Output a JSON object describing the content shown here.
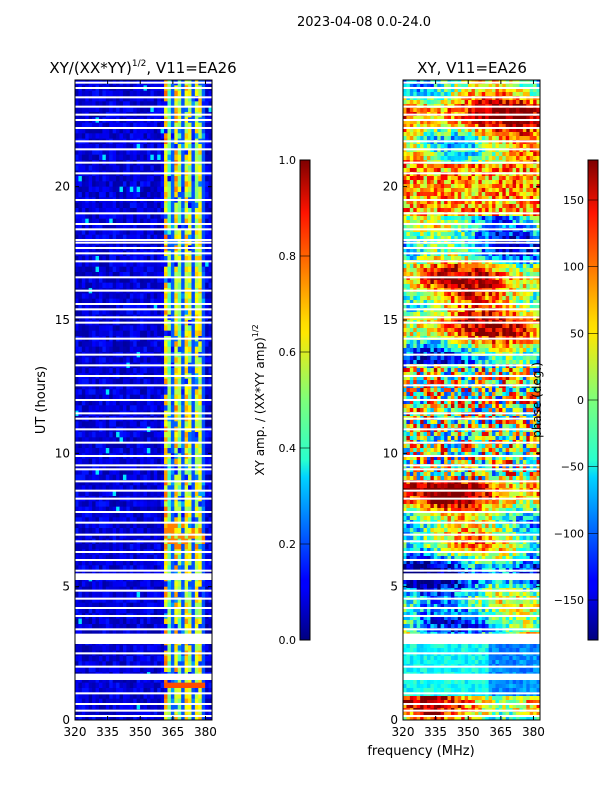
{
  "figure_title": "2023-04-08 0.0-24.0",
  "shared_xlabel": "frequency (MHz)",
  "chart_data": [
    {
      "type": "heatmap",
      "title": "XY/(XX*YY)^1/2, V11=EA26",
      "title_main": "XY/(XX*YY)",
      "title_exp": "1/2",
      "title_tail": ", V11=EA26",
      "xlabel": "frequency (MHz)",
      "ylabel": "UT (hours)",
      "xlim": [
        320,
        383
      ],
      "ylim": [
        0,
        24
      ],
      "xticks": [
        320,
        335,
        350,
        365,
        380
      ],
      "yticks": [
        0,
        5,
        10,
        15,
        20
      ],
      "colorbar": {
        "label_main": "XY amp. / (XX*YY amp)",
        "label_exp": "1/2",
        "range": [
          0.0,
          1.0
        ],
        "ticks": [
          "0.0",
          "0.2",
          "0.4",
          "0.6",
          "0.8",
          "1.0"
        ],
        "tick_values": [
          0.0,
          0.2,
          0.4,
          0.6,
          0.8,
          1.0
        ]
      },
      "description_values": {
        "background_level": 0.05,
        "active_band_mhz": [
          361,
          380
        ],
        "active_level_range": [
          0.2,
          0.85
        ]
      }
    },
    {
      "type": "heatmap",
      "title": "XY, V11=EA26",
      "xlabel": "frequency (MHz)",
      "ylabel": "",
      "xlim": [
        320,
        383
      ],
      "ylim": [
        0,
        24
      ],
      "xticks": [
        320,
        335,
        350,
        365,
        380
      ],
      "yticks": [
        0,
        5,
        10,
        15,
        20
      ],
      "colorbar": {
        "label_main": "phase (deg.)",
        "label_exp": "",
        "range": [
          -180,
          180
        ],
        "ticks": [
          "−150",
          "−100",
          "−50",
          "0",
          "50",
          "100",
          "150"
        ],
        "tick_values": [
          -150,
          -100,
          -50,
          0,
          50,
          100,
          150
        ]
      }
    }
  ],
  "flagged_hours": [
    0.15,
    0.35,
    0.6,
    1.0,
    1.55,
    1.7,
    2.0,
    2.5,
    2.9,
    3.05,
    3.2,
    3.4,
    3.9,
    4.2,
    4.55,
    4.85,
    5.3,
    5.45,
    5.6,
    6.0,
    6.3,
    6.7,
    6.95,
    7.4,
    7.8,
    8.3,
    8.6,
    8.95,
    9.4,
    9.55,
    9.9,
    10.4,
    10.9,
    11.3,
    11.5,
    12.0,
    12.55,
    12.9,
    13.3,
    13.7,
    14.3,
    14.9,
    15.1,
    15.4,
    15.6,
    16.1,
    16.6,
    17.2,
    17.5,
    17.7,
    17.9,
    18.0,
    18.4,
    18.6,
    19.0,
    19.5,
    20.5,
    20.9,
    21.4,
    21.7,
    22.2,
    22.5,
    22.7,
    23.0,
    23.35,
    23.7,
    23.9
  ],
  "wide_flags": [
    [
      2.85,
      3.2
    ],
    [
      5.25,
      5.5
    ],
    [
      1.5,
      1.7
    ]
  ]
}
